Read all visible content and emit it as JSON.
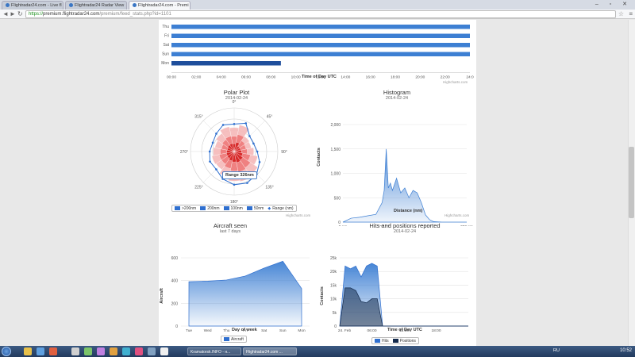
{
  "browser": {
    "tabs": [
      {
        "label": "Flightradar24.com - Live fl",
        "active": false
      },
      {
        "label": "Flightradar24 Radar View",
        "active": false
      },
      {
        "label": "Flightradar24.com - Premi",
        "active": true
      }
    ],
    "url": {
      "scheme": "https://",
      "host": "premium.flightradar24.com",
      "path": "/premium/feed_stats.php?id=1101"
    }
  },
  "uptime_chart": {
    "days": [
      "Thu",
      "Fri",
      "Sat",
      "Sun",
      "Mon"
    ],
    "x_ticks": [
      "00:00",
      "02:00",
      "04:00",
      "06:00",
      "08:00",
      "10:00",
      "12:00",
      "14:00",
      "16:00",
      "18:00",
      "20:00",
      "22:00",
      "24:0"
    ],
    "xlabel": "Time of Day UTC",
    "credit": "Highcharts.com"
  },
  "polar": {
    "title": "Polar Plot",
    "subtitle": "2014-02-24",
    "angles": [
      "0°",
      "45°",
      "90°",
      "135°",
      "180°",
      "225°",
      "270°",
      "315°"
    ],
    "tooltip": "Range 326nm",
    "legend": [
      ">200nm",
      "200nm",
      "100nm",
      "50nm",
      "Range (nm)"
    ],
    "credit": "Highcharts.com",
    "colors": {
      "r200": "#f5b8b8",
      "r100": "#ee7a7a",
      "r50": "#d42020",
      "range": "#2f6fcf"
    }
  },
  "histogram": {
    "title": "Histogram",
    "subtitle": "2014-02-24",
    "yticks": [
      "2,000",
      "1,500",
      "1,000",
      "500",
      "0"
    ],
    "xticks": [
      "0 nm",
      "100 nm",
      "200 nm",
      "300 nm"
    ],
    "xlabel": "Distance (nm)",
    "ylabel": "Contacts",
    "credit": "Highcharts.com"
  },
  "aircraft": {
    "title": "Aircraft seen",
    "subtitle": "last 7 days",
    "yticks": [
      "600",
      "400",
      "200",
      "0"
    ],
    "xticks": [
      "Tue",
      "Wed",
      "Thu",
      "Fri",
      "Sat",
      "Sun",
      "Mon"
    ],
    "xlabel": "Day of week",
    "ylabel": "Aircraft",
    "legend": [
      "Aircraft"
    ]
  },
  "hits": {
    "title": "Hits and positions reported",
    "subtitle": "2014-02-24",
    "yticks": [
      "25k",
      "20k",
      "15k",
      "10k",
      "5k",
      "0"
    ],
    "xticks": [
      "24. Feb",
      "06:00",
      "12:00",
      "18:00"
    ],
    "xlabel": "Time of Day UTC",
    "ylabel": "Contacts",
    "legend": [
      "Hits",
      "Positions"
    ]
  },
  "chart_data": [
    {
      "type": "bar",
      "categories": [
        "Thu",
        "Fri",
        "Sat",
        "Sun",
        "Mon"
      ],
      "series": [
        {
          "values": [
            24,
            24,
            24,
            24,
            8.8
          ]
        }
      ],
      "xlabel": "Time of Day UTC",
      "ylim": [
        0,
        24
      ]
    },
    {
      "type": "area",
      "title": "Histogram",
      "x": [
        0,
        20,
        40,
        60,
        80,
        95,
        100,
        105,
        110,
        115,
        120,
        130,
        140,
        150,
        160,
        170,
        180,
        190,
        200,
        210,
        220,
        240,
        260,
        280,
        300
      ],
      "values": [
        0,
        80,
        100,
        130,
        160,
        400,
        650,
        1500,
        700,
        800,
        650,
        900,
        600,
        700,
        500,
        650,
        600,
        400,
        150,
        50,
        10,
        0,
        0,
        0,
        0
      ],
      "xlabel": "Distance (nm)",
      "ylabel": "Contacts",
      "ylim": [
        0,
        2000
      ]
    },
    {
      "type": "area",
      "title": "Aircraft seen",
      "categories": [
        "Tue",
        "Wed",
        "Thu",
        "Fri",
        "Sat",
        "Sun",
        "Mon"
      ],
      "series": [
        {
          "name": "Aircraft",
          "values": [
            390,
            395,
            405,
            440,
            510,
            570,
            330
          ]
        }
      ],
      "xlabel": "Day of week",
      "ylabel": "Aircraft",
      "ylim": [
        0,
        600
      ]
    },
    {
      "type": "area",
      "title": "Hits and positions reported",
      "x": [
        0,
        1,
        2,
        3,
        4,
        5,
        6,
        7,
        8,
        9,
        10,
        11,
        12,
        18,
        24
      ],
      "series": [
        {
          "name": "Hits",
          "values": [
            0,
            22000,
            21000,
            22000,
            18000,
            22000,
            23000,
            22000,
            0,
            0,
            0,
            0,
            0,
            0,
            0
          ]
        },
        {
          "name": "Positions",
          "values": [
            0,
            14000,
            14000,
            13000,
            9000,
            8500,
            10000,
            10000,
            0,
            0,
            0,
            0,
            0,
            0,
            0
          ]
        }
      ],
      "xlabel": "Time of Day UTC",
      "ylabel": "Contacts",
      "ylim": [
        0,
        25000
      ]
    }
  ],
  "taskbar": {
    "tasks": [
      "Kramatorsk.INFO - н...",
      "Flightradar24.com ..."
    ],
    "lang": "RU",
    "time": "10:52"
  }
}
